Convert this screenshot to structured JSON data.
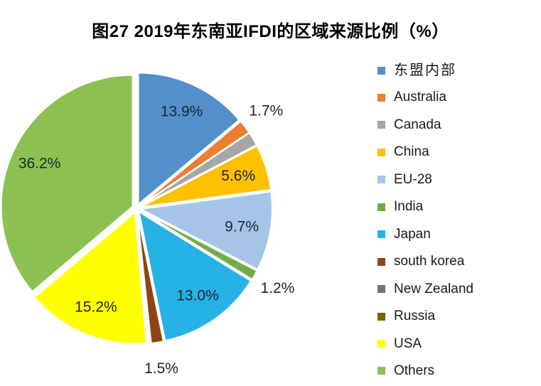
{
  "chart_data": {
    "type": "pie",
    "title": "图27 2019年东南亚IFDI的区域来源比例（%）",
    "unit": "%",
    "legend_position": "right",
    "start_angle_deg": 0,
    "direction": "clockwise",
    "explode": true,
    "label_text_color": "#1c2430",
    "background": "#ffffff",
    "slices": [
      {
        "name": "东盟内部",
        "value": 13.9,
        "label": "13.9%",
        "color": "#5390cb",
        "label_pos": "inside"
      },
      {
        "name": "Australia",
        "value": 1.7,
        "label": "1.7%",
        "color": "#ed7d31",
        "label_pos": "outside"
      },
      {
        "name": "Canada",
        "value": 1.7,
        "label": "",
        "color": "#a6a6a6",
        "label_pos": "none"
      },
      {
        "name": "China",
        "value": 5.6,
        "label": "5.6%",
        "color": "#ffc000",
        "label_pos": "inside"
      },
      {
        "name": "EU-28",
        "value": 9.7,
        "label": "9.7%",
        "color": "#a5c4e7",
        "label_pos": "inside"
      },
      {
        "name": "India",
        "value": 1.2,
        "label": "1.2%",
        "color": "#70ad47",
        "label_pos": "outside"
      },
      {
        "name": "Japan",
        "value": 13.0,
        "label": "13.0%",
        "color": "#27b2e6",
        "label_pos": "inside"
      },
      {
        "name": "south korea",
        "value": 1.5,
        "label": "1.5%",
        "color": "#8f4511",
        "label_pos": "outside"
      },
      {
        "name": "New Zealand",
        "value": 0.15,
        "label": "",
        "color": "#757575",
        "label_pos": "none"
      },
      {
        "name": "Russia",
        "value": 0.15,
        "label": "",
        "color": "#7f6000",
        "label_pos": "none"
      },
      {
        "name": "USA",
        "value": 15.2,
        "label": "15.2%",
        "color": "#ffff00",
        "label_pos": "inside"
      },
      {
        "name": "Others",
        "value": 36.2,
        "label": "36.2%",
        "color": "#8cc152",
        "label_pos": "inside"
      }
    ]
  }
}
